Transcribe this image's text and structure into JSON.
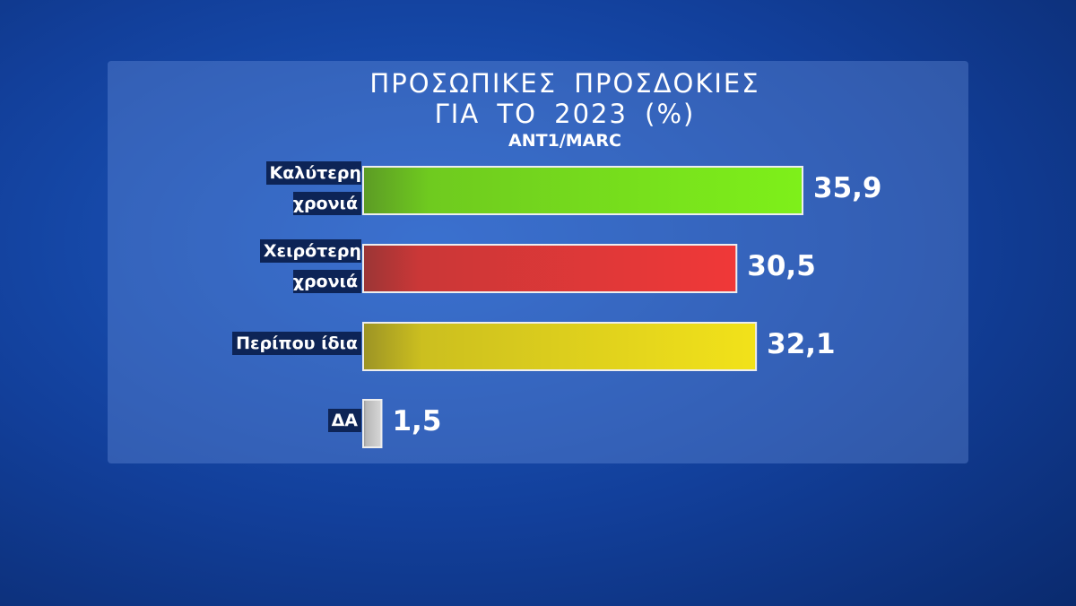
{
  "chart_data": {
    "type": "bar",
    "orientation": "horizontal",
    "title": "ΠΡΟΣΩΠΙΚΕΣ ΠΡΟΣΔΟΚΙΕΣ",
    "subtitle": "ΓΙΑ ΤΟ 2023 (%)",
    "source": "ANT1/MARC",
    "categories": [
      "Καλύτερη\nχρονιά",
      "Χειρότερη\nχρονιά",
      "Περίπου ίδια",
      "ΔΑ"
    ],
    "values": [
      35.9,
      30.5,
      32.1,
      1.5
    ],
    "value_labels": [
      "35,9",
      "30,5",
      "32,1",
      "1,5"
    ],
    "colors": [
      "#7ef01a",
      "#f03838",
      "#f2e21a",
      "#d8d8d8"
    ]
  }
}
